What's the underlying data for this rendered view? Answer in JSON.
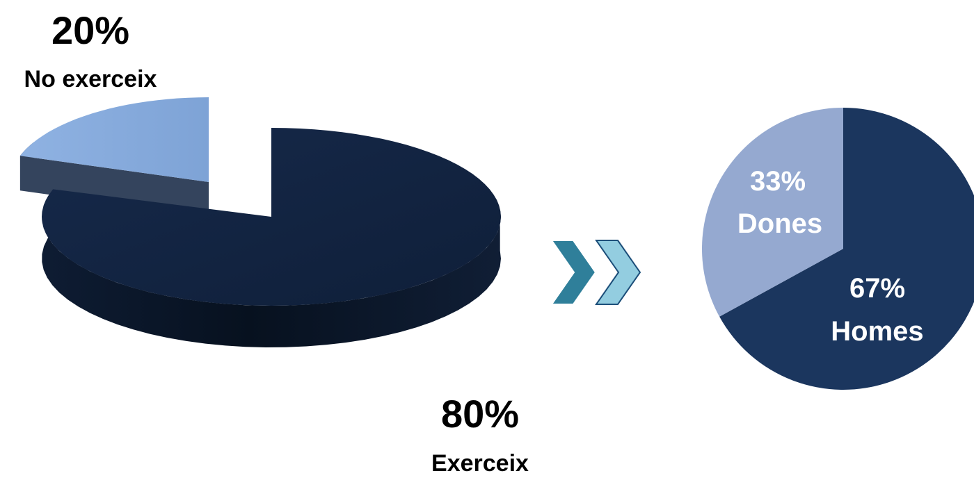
{
  "chart_data": [
    {
      "type": "pie",
      "style": "3d-exploded",
      "slices": [
        {
          "label": "Exerceix",
          "value": 80,
          "value_label": "80%",
          "color": "#112340"
        },
        {
          "label": "No exerceix",
          "value": 20,
          "value_label": "20%",
          "color": "#8db0e0"
        }
      ]
    },
    {
      "type": "pie",
      "slices": [
        {
          "label": "Homes",
          "value": 67,
          "value_label": "67%",
          "color": "#1b365e"
        },
        {
          "label": "Dones",
          "value": 33,
          "value_label": "33%",
          "color": "#95a9d0"
        }
      ]
    }
  ],
  "connector": {
    "icon": "double-chevron-right-icon",
    "colors": [
      "#2f7f9a",
      "#93cde0"
    ]
  }
}
